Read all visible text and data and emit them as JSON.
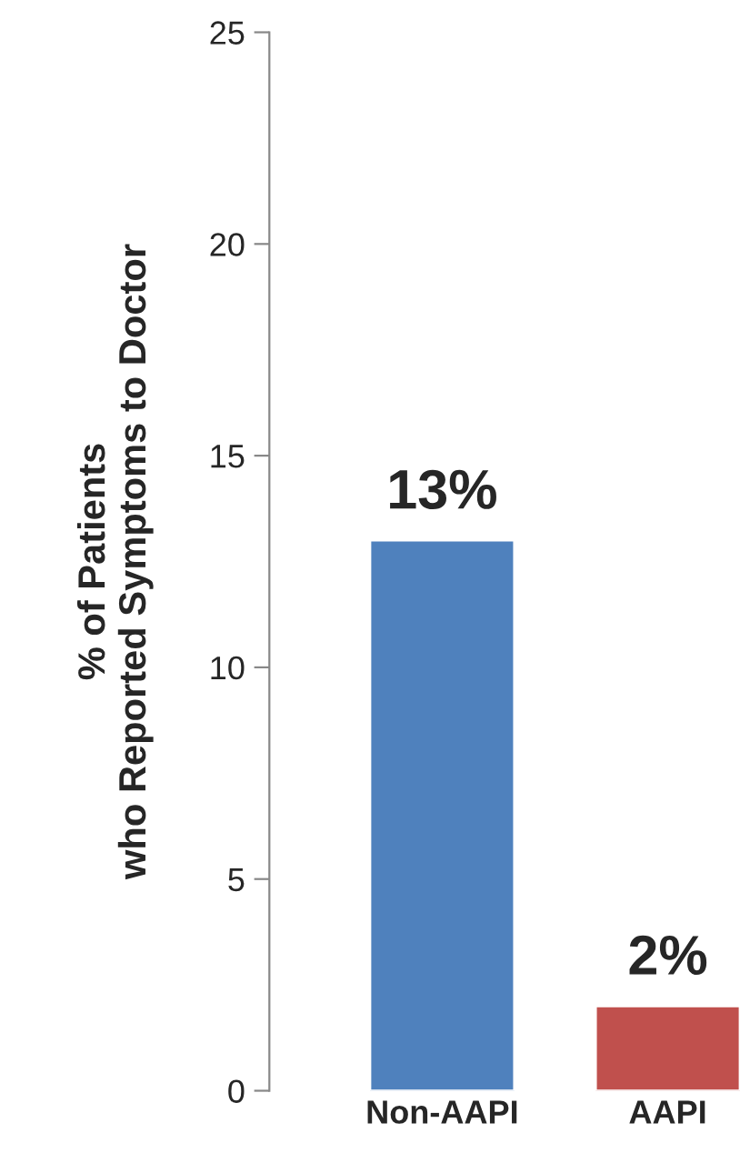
{
  "chart_data": {
    "type": "bar",
    "ylabel": "% of Patients\nwho Reported Symptoms to Doctor",
    "categories": [
      "Non-AAPI",
      "AAPI"
    ],
    "values": [
      13,
      2
    ],
    "colors": [
      "#4f81bd",
      "#c0504d"
    ],
    "value_labels": [
      "13%",
      "2%"
    ],
    "ylim": [
      0,
      25
    ],
    "yticks": [
      0,
      5,
      10,
      15,
      20,
      25
    ],
    "grid": false,
    "legend": false
  }
}
